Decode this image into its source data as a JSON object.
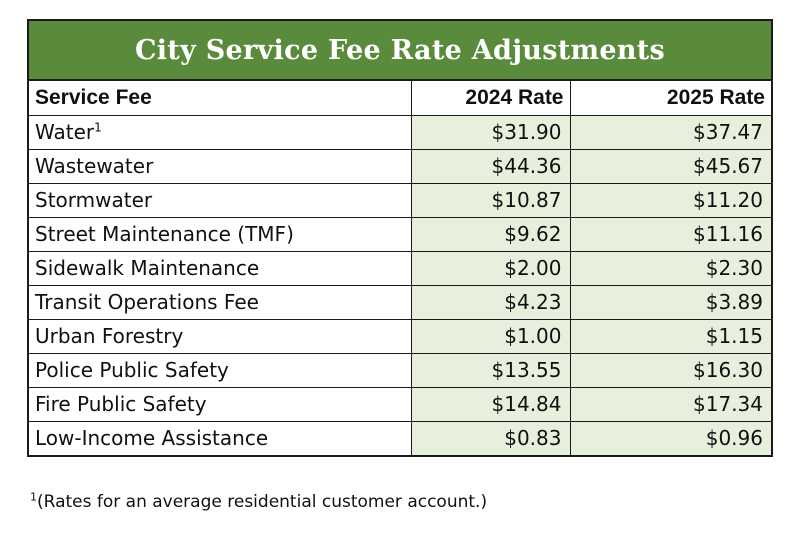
{
  "title": "City Service Fee Rate Adjustments",
  "columns": [
    "Service Fee",
    "2024 Rate",
    "2025 Rate"
  ],
  "rows": [
    {
      "name": "Water",
      "sup": "1",
      "rate_2024": "$31.90",
      "rate_2025": "$37.47"
    },
    {
      "name": "Wastewater",
      "sup": "",
      "rate_2024": "$44.36",
      "rate_2025": "$45.67"
    },
    {
      "name": "Stormwater",
      "sup": "",
      "rate_2024": "$10.87",
      "rate_2025": "$11.20"
    },
    {
      "name": "Street Maintenance (TMF)",
      "sup": "",
      "rate_2024": "$9.62",
      "rate_2025": "$11.16"
    },
    {
      "name": "Sidewalk Maintenance",
      "sup": "",
      "rate_2024": "$2.00",
      "rate_2025": "$2.30"
    },
    {
      "name": "Transit Operations Fee",
      "sup": "",
      "rate_2024": "$4.23",
      "rate_2025": "$3.89"
    },
    {
      "name": "Urban Forestry",
      "sup": "",
      "rate_2024": "$1.00",
      "rate_2025": "$1.15"
    },
    {
      "name": "Police Public Safety",
      "sup": "",
      "rate_2024": "$13.55",
      "rate_2025": "$16.30"
    },
    {
      "name": "Fire Public Safety",
      "sup": "",
      "rate_2024": "$14.84",
      "rate_2025": "$17.34"
    },
    {
      "name": "Low-Income Assistance",
      "sup": "",
      "rate_2024": "$0.83",
      "rate_2025": "$0.96"
    }
  ],
  "footnote": {
    "marker": "1",
    "text": "(Rates for an average residential customer account.)"
  },
  "colors": {
    "title_bar": "#5a8b3c",
    "rate_cell_bg": "#e7f0dc",
    "border": "#1a1a1a"
  }
}
